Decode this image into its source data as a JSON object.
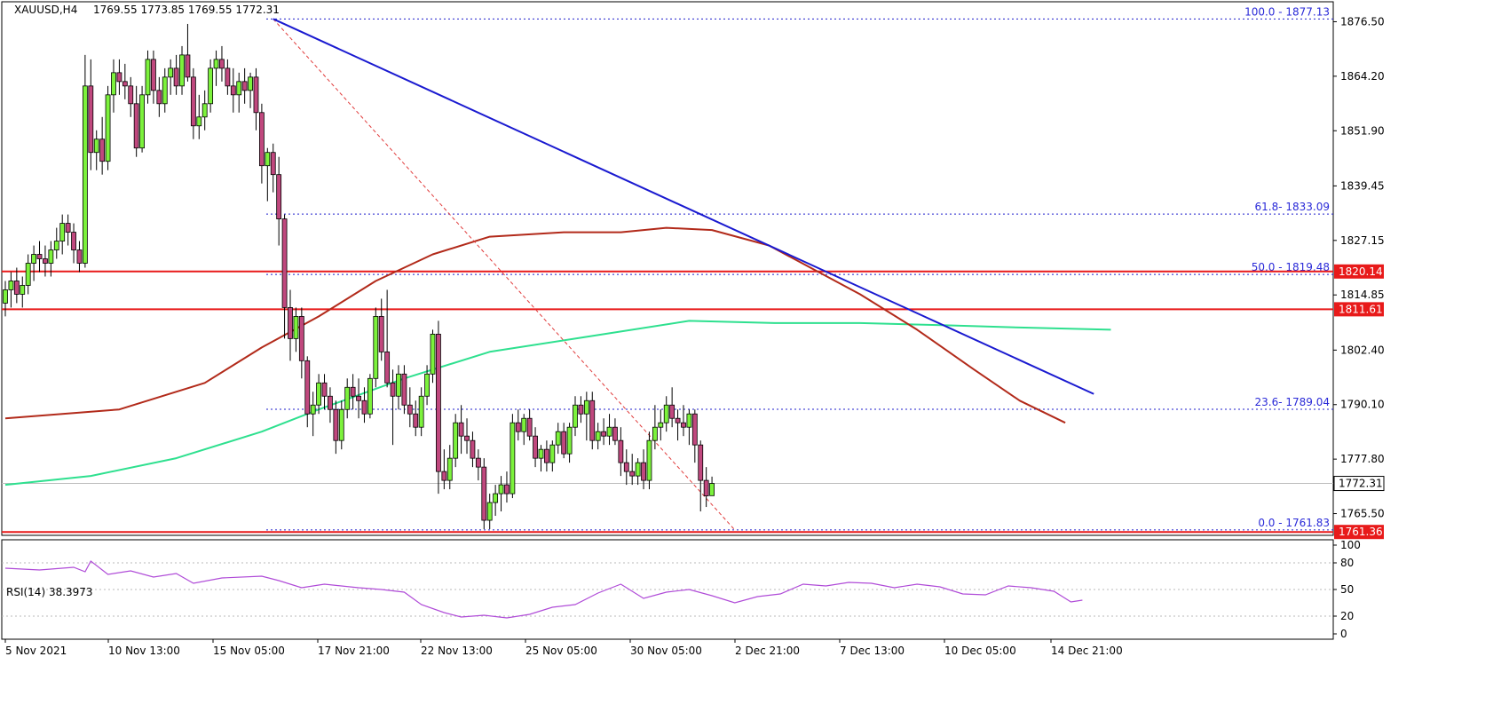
{
  "header": {
    "symbol_label": "XAUUSD,H4",
    "ohlc_label": "1769.55 1773.85 1769.55 1772.31"
  },
  "colors": {
    "bull": "#7cf23c",
    "bear": "#c0487e",
    "trendline": "#1a1ad0",
    "ma_red": "#b22a1a",
    "ma_green": "#2ee08f",
    "support_resistance": "#e81a1a",
    "fib": "#1f1fcc",
    "rsi": "#b04cd8",
    "price_box": "#e81a1a"
  },
  "chart_data": [
    {
      "type": "candlestick",
      "series_name": "XAUUSD,H4",
      "ylim": [
        1760.6,
        1881.0
      ],
      "y_ticks": [
        1876.5,
        1864.2,
        1851.9,
        1839.45,
        1827.15,
        1814.85,
        1802.4,
        1790.1,
        1777.8,
        1765.5
      ],
      "x_tick_labels": [
        "5 Nov 2021",
        "10 Nov 13:00",
        "15 Nov 05:00",
        "17 Nov 21:00",
        "22 Nov 13:00",
        "25 Nov 05:00",
        "30 Nov 05:00",
        "2 Dec 21:00",
        "7 Dec 13:00",
        "10 Dec 05:00",
        "14 Dec 21:00"
      ],
      "candles": [
        [
          1813.0,
          1818.0,
          1810.0,
          1816.0
        ],
        [
          1816.0,
          1820.0,
          1812.0,
          1818.0
        ],
        [
          1818.0,
          1821.0,
          1813.0,
          1815.0
        ],
        [
          1815.0,
          1819.0,
          1812.0,
          1817.0
        ],
        [
          1817.0,
          1824.0,
          1815.0,
          1822.0
        ],
        [
          1822.0,
          1826.0,
          1818.0,
          1824.0
        ],
        [
          1824.0,
          1827.0,
          1820.0,
          1823.0
        ],
        [
          1823.0,
          1826.0,
          1819.0,
          1822.0
        ],
        [
          1822.0,
          1827.0,
          1819.0,
          1825.0
        ],
        [
          1825.0,
          1830.0,
          1823.0,
          1827.0
        ],
        [
          1827.0,
          1833.0,
          1824.0,
          1831.0
        ],
        [
          1831.0,
          1833.0,
          1826.0,
          1829.0
        ],
        [
          1829.0,
          1831.0,
          1822.0,
          1825.0
        ],
        [
          1825.0,
          1827.0,
          1820.0,
          1822.0
        ],
        [
          1822.0,
          1869.0,
          1821.0,
          1862.0
        ],
        [
          1862.0,
          1868.0,
          1843.0,
          1847.0
        ],
        [
          1847.0,
          1852.0,
          1843.0,
          1850.0
        ],
        [
          1850.0,
          1855.0,
          1842.0,
          1845.0
        ],
        [
          1845.0,
          1862.0,
          1843.0,
          1860.0
        ],
        [
          1860.0,
          1868.0,
          1856.0,
          1865.0
        ],
        [
          1865.0,
          1868.0,
          1860.0,
          1863.0
        ],
        [
          1863.0,
          1867.0,
          1859.0,
          1862.0
        ],
        [
          1862.0,
          1864.0,
          1855.0,
          1858.0
        ],
        [
          1858.0,
          1862.0,
          1846.0,
          1848.0
        ],
        [
          1848.0,
          1862.0,
          1847.0,
          1860.0
        ],
        [
          1860.0,
          1870.0,
          1858.0,
          1868.0
        ],
        [
          1868.0,
          1870.0,
          1858.0,
          1861.0
        ],
        [
          1861.0,
          1864.0,
          1855.0,
          1858.0
        ],
        [
          1858.0,
          1866.0,
          1856.0,
          1864.0
        ],
        [
          1864.0,
          1868.0,
          1860.0,
          1866.0
        ],
        [
          1866.0,
          1869.0,
          1860.0,
          1862.0
        ],
        [
          1862.0,
          1871.0,
          1860.0,
          1869.0
        ],
        [
          1869.0,
          1876.0,
          1863.0,
          1864.0
        ],
        [
          1864.0,
          1866.0,
          1850.0,
          1853.0
        ],
        [
          1853.0,
          1860.0,
          1850.0,
          1855.0
        ],
        [
          1855.0,
          1861.0,
          1852.0,
          1858.0
        ],
        [
          1858.0,
          1868.0,
          1856.0,
          1866.0
        ],
        [
          1866.0,
          1870.0,
          1862.0,
          1868.0
        ],
        [
          1868.0,
          1871.0,
          1863.0,
          1866.0
        ],
        [
          1866.0,
          1868.0,
          1860.0,
          1862.0
        ],
        [
          1862.0,
          1866.0,
          1856.0,
          1860.0
        ],
        [
          1860.0,
          1865.0,
          1856.0,
          1863.0
        ],
        [
          1863.0,
          1866.0,
          1858.0,
          1861.0
        ],
        [
          1861.0,
          1865.0,
          1857.0,
          1864.0
        ],
        [
          1864.0,
          1866.0,
          1852.0,
          1856.0
        ],
        [
          1856.0,
          1858.0,
          1840.0,
          1844.0
        ],
        [
          1844.0,
          1848.0,
          1836.0,
          1847.0
        ],
        [
          1847.0,
          1849.0,
          1838.0,
          1842.0
        ],
        [
          1842.0,
          1846.0,
          1826.0,
          1832.0
        ],
        [
          1832.0,
          1833.0,
          1805.0,
          1812.0
        ],
        [
          1812.0,
          1816.0,
          1800.0,
          1805.0
        ],
        [
          1805.0,
          1812.0,
          1802.0,
          1810.0
        ],
        [
          1810.0,
          1812.0,
          1796.0,
          1800.0
        ],
        [
          1800.0,
          1801.0,
          1785.0,
          1788.0
        ],
        [
          1788.0,
          1793.0,
          1783.0,
          1790.0
        ],
        [
          1790.0,
          1797.0,
          1788.0,
          1795.0
        ],
        [
          1795.0,
          1797.0,
          1789.0,
          1792.0
        ],
        [
          1792.0,
          1794.0,
          1786.0,
          1789.0
        ],
        [
          1789.0,
          1791.0,
          1779.0,
          1782.0
        ],
        [
          1782.0,
          1791.0,
          1780.0,
          1789.0
        ],
        [
          1789.0,
          1796.0,
          1787.0,
          1794.0
        ],
        [
          1794.0,
          1797.0,
          1789.0,
          1792.0
        ],
        [
          1792.0,
          1796.0,
          1787.0,
          1791.0
        ],
        [
          1791.0,
          1794.0,
          1786.0,
          1788.0
        ],
        [
          1788.0,
          1797.0,
          1787.0,
          1796.0
        ],
        [
          1796.0,
          1812.0,
          1794.0,
          1810.0
        ],
        [
          1810.0,
          1814.0,
          1800.0,
          1802.0
        ],
        [
          1802.0,
          1816.0,
          1794.0,
          1795.0
        ],
        [
          1795.0,
          1798.0,
          1781.0,
          1792.0
        ],
        [
          1792.0,
          1799.0,
          1789.0,
          1797.0
        ],
        [
          1797.0,
          1799.0,
          1788.0,
          1790.0
        ],
        [
          1790.0,
          1794.0,
          1785.0,
          1788.0
        ],
        [
          1788.0,
          1791.0,
          1783.0,
          1785.0
        ],
        [
          1785.0,
          1794.0,
          1783.0,
          1792.0
        ],
        [
          1792.0,
          1799.0,
          1790.0,
          1797.0
        ],
        [
          1797.0,
          1807.0,
          1795.0,
          1806.0
        ],
        [
          1806.0,
          1809.0,
          1770.0,
          1775.0
        ],
        [
          1775.0,
          1780.0,
          1771.0,
          1773.0
        ],
        [
          1773.0,
          1781.0,
          1771.0,
          1778.0
        ],
        [
          1778.0,
          1788.0,
          1776.0,
          1786.0
        ],
        [
          1786.0,
          1790.0,
          1779.0,
          1783.0
        ],
        [
          1783.0,
          1787.0,
          1779.0,
          1782.0
        ],
        [
          1782.0,
          1784.0,
          1776.0,
          1778.0
        ],
        [
          1778.0,
          1780.0,
          1773.0,
          1776.0
        ],
        [
          1776.0,
          1778.0,
          1762.0,
          1764.0
        ],
        [
          1764.0,
          1770.0,
          1762.0,
          1768.0
        ],
        [
          1768.0,
          1772.0,
          1765.0,
          1770.0
        ],
        [
          1770.0,
          1774.0,
          1766.0,
          1772.0
        ],
        [
          1772.0,
          1775.0,
          1768.0,
          1770.0
        ],
        [
          1770.0,
          1788.0,
          1769.0,
          1786.0
        ],
        [
          1786.0,
          1789.0,
          1782.0,
          1784.0
        ],
        [
          1784.0,
          1788.0,
          1781.0,
          1787.0
        ],
        [
          1787.0,
          1789.0,
          1782.0,
          1783.0
        ],
        [
          1783.0,
          1785.0,
          1776.0,
          1778.0
        ],
        [
          1778.0,
          1781.0,
          1775.0,
          1780.0
        ],
        [
          1780.0,
          1782.0,
          1775.0,
          1777.0
        ],
        [
          1777.0,
          1782.0,
          1775.0,
          1781.0
        ],
        [
          1781.0,
          1786.0,
          1779.0,
          1784.0
        ],
        [
          1784.0,
          1786.0,
          1778.0,
          1779.0
        ],
        [
          1779.0,
          1786.0,
          1777.0,
          1785.0
        ],
        [
          1785.0,
          1792.0,
          1783.0,
          1790.0
        ],
        [
          1790.0,
          1792.0,
          1786.0,
          1788.0
        ],
        [
          1788.0,
          1793.0,
          1782.0,
          1791.0
        ],
        [
          1791.0,
          1793.0,
          1780.0,
          1782.0
        ],
        [
          1782.0,
          1786.0,
          1780.0,
          1784.0
        ],
        [
          1784.0,
          1787.0,
          1781.0,
          1783.0
        ],
        [
          1783.0,
          1788.0,
          1781.0,
          1785.0
        ],
        [
          1785.0,
          1787.0,
          1781.0,
          1782.0
        ],
        [
          1782.0,
          1785.0,
          1774.0,
          1777.0
        ],
        [
          1777.0,
          1780.0,
          1772.0,
          1775.0
        ],
        [
          1775.0,
          1779.0,
          1772.0,
          1774.0
        ],
        [
          1774.0,
          1778.0,
          1772.0,
          1777.0
        ],
        [
          1777.0,
          1780.0,
          1771.0,
          1773.0
        ],
        [
          1773.0,
          1784.0,
          1771.0,
          1782.0
        ],
        [
          1782.0,
          1790.0,
          1780.0,
          1785.0
        ],
        [
          1785.0,
          1789.0,
          1782.0,
          1786.0
        ],
        [
          1786.0,
          1792.0,
          1784.0,
          1790.0
        ],
        [
          1790.0,
          1794.0,
          1785.0,
          1787.0
        ],
        [
          1787.0,
          1789.0,
          1782.0,
          1786.0
        ],
        [
          1786.0,
          1790.0,
          1783.0,
          1785.0
        ],
        [
          1785.0,
          1789.0,
          1781.0,
          1788.0
        ],
        [
          1788.0,
          1789.0,
          1777.0,
          1781.0
        ],
        [
          1781.0,
          1782.0,
          1766.0,
          1773.0
        ],
        [
          1773.0,
          1776.0,
          1767.0,
          1769.5
        ],
        [
          1769.55,
          1773.85,
          1769.55,
          1772.31
        ]
      ],
      "ma_red_points": [
        [
          0,
          1787.0
        ],
        [
          20,
          1789.0
        ],
        [
          35,
          1795.0
        ],
        [
          45,
          1803.0
        ],
        [
          55,
          1810.0
        ],
        [
          65,
          1818.0
        ],
        [
          75,
          1824.0
        ],
        [
          85,
          1828.0
        ],
        [
          98,
          1829.0
        ],
        [
          108,
          1829.0
        ],
        [
          116,
          1830.0
        ],
        [
          124,
          1829.5
        ],
        [
          134,
          1826.0
        ],
        [
          150,
          1815.0
        ],
        [
          160,
          1807.0
        ],
        [
          170,
          1798.0
        ],
        [
          178,
          1791.0
        ],
        [
          186,
          1786.0
        ]
      ],
      "ma_green_points": [
        [
          0,
          1772.0
        ],
        [
          15,
          1774.0
        ],
        [
          30,
          1778.0
        ],
        [
          45,
          1784.0
        ],
        [
          55,
          1789.0
        ],
        [
          70,
          1796.0
        ],
        [
          85,
          1802.0
        ],
        [
          100,
          1805.0
        ],
        [
          120,
          1809.0
        ],
        [
          135,
          1808.5
        ],
        [
          150,
          1808.5
        ],
        [
          165,
          1808.0
        ],
        [
          178,
          1807.5
        ],
        [
          194,
          1807.0
        ]
      ],
      "trendline": [
        [
          47,
          1877.13
        ],
        [
          191,
          1792.5
        ]
      ],
      "fib_diagonal": [
        [
          47,
          1877.13
        ],
        [
          128,
          1761.83
        ]
      ],
      "fib_levels": [
        {
          "label": "100.0 - 1877.13",
          "value": 1877.13
        },
        {
          "label": "61.8- 1833.09",
          "value": 1833.09
        },
        {
          "label": "50.0 - 1819.48",
          "value": 1819.48
        },
        {
          "label": "23.6- 1789.04",
          "value": 1789.04
        },
        {
          "label": "0.0 - 1761.83",
          "value": 1761.83
        }
      ],
      "horizontal_levels": [
        {
          "label": "1820.14",
          "value": 1820.14
        },
        {
          "label": "1811.61",
          "value": 1811.61
        },
        {
          "label": "1761.36",
          "value": 1761.36
        }
      ],
      "current_price": {
        "label": "1772.31",
        "value": 1772.31
      }
    },
    {
      "type": "line",
      "title": "RSI(14) 38.3973",
      "ylim": [
        0,
        100
      ],
      "y_ticks": [
        100,
        80,
        50,
        20,
        0
      ],
      "dotted_levels": [
        80,
        50,
        20
      ],
      "series": [
        {
          "name": "RSI(14) 38.3973",
          "points": [
            [
              0,
              74
            ],
            [
              6,
              72
            ],
            [
              12,
              75
            ],
            [
              14,
              70
            ],
            [
              15,
              82
            ],
            [
              18,
              67
            ],
            [
              22,
              71
            ],
            [
              26,
              64
            ],
            [
              30,
              68
            ],
            [
              33,
              57
            ],
            [
              38,
              63
            ],
            [
              45,
              65
            ],
            [
              48,
              60
            ],
            [
              52,
              52
            ],
            [
              56,
              56
            ],
            [
              62,
              52
            ],
            [
              66,
              50
            ],
            [
              70,
              47
            ],
            [
              73,
              33
            ],
            [
              77,
              24
            ],
            [
              80,
              19
            ],
            [
              84,
              21
            ],
            [
              88,
              18
            ],
            [
              92,
              22
            ],
            [
              96,
              30
            ],
            [
              100,
              33
            ],
            [
              104,
              46
            ],
            [
              108,
              56
            ],
            [
              112,
              40
            ],
            [
              116,
              47
            ],
            [
              120,
              50
            ],
            [
              124,
              43
            ],
            [
              128,
              35
            ],
            [
              132,
              42
            ],
            [
              136,
              45
            ],
            [
              140,
              56
            ],
            [
              144,
              54
            ],
            [
              148,
              58
            ],
            [
              152,
              57
            ],
            [
              156,
              52
            ],
            [
              160,
              56
            ],
            [
              164,
              53
            ],
            [
              168,
              45
            ],
            [
              172,
              44
            ],
            [
              176,
              54
            ],
            [
              180,
              52
            ],
            [
              184,
              48
            ],
            [
              187,
              36
            ],
            [
              189,
              38
            ]
          ]
        }
      ]
    }
  ]
}
